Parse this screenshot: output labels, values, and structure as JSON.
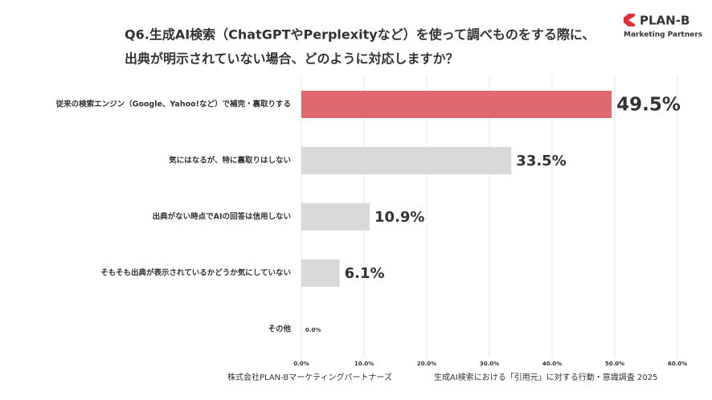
{
  "chart_data": {
    "type": "bar",
    "orientation": "horizontal",
    "title": [
      "Q6.生成AI検索（ChatGPTやPerplexityなど）を使って調べものをする際に、",
      "出典が明示されていない場合、どのように対応しますか？"
    ],
    "categories": [
      "従来の検索エンジン（Google、Yahoo!など）で補完・裏取りする",
      "気にはなるが、特に裏取りはしない",
      "出典がない時点でAIの回答は信用しない",
      "そもそも出典が表示されているかどうか気にしていない",
      "その他"
    ],
    "values": [
      49.5,
      33.5,
      10.9,
      6.1,
      0.0
    ],
    "value_labels": [
      "49.5%",
      "33.5%",
      "10.9%",
      "6.1%",
      "0.0%"
    ],
    "colors": [
      "#e0686f",
      "#d9d9d9",
      "#d9d9d9",
      "#d9d9d9",
      "#d9d9d9"
    ],
    "xlim": [
      0,
      60
    ],
    "xticks": [
      {
        "value": 0,
        "label": "0.0%"
      },
      {
        "value": 10,
        "label": "10.0%"
      },
      {
        "value": 20,
        "label": "20.0%"
      },
      {
        "value": 30,
        "label": "30.0%"
      },
      {
        "value": 40,
        "label": "40.0%"
      },
      {
        "value": 50,
        "label": "50.0%"
      },
      {
        "value": 60,
        "label": "60.0%"
      }
    ],
    "grid": true,
    "source": [
      "株式会社PLAN-Bマーケティングパートナーズ",
      "生成AI検索における「引用元」に対する行動・意識調査 2025"
    ]
  },
  "logo": {
    "name": "PLAN-B",
    "tagline": "Marketing Partners"
  }
}
